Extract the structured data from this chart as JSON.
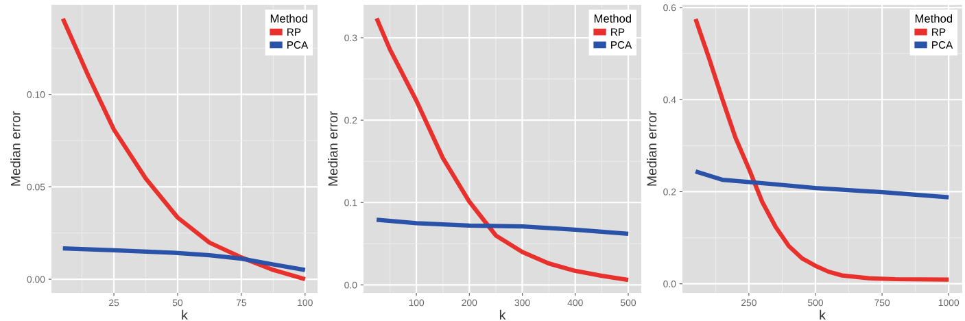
{
  "chart_data": [
    {
      "type": "line",
      "xlabel": "k",
      "ylabel": "Median error",
      "legend_title": "Method",
      "legend": "top right",
      "grid": true,
      "line_style": "solid",
      "xlim": [
        0.5,
        104.9
      ],
      "ylim": [
        -0.0074,
        0.1485
      ],
      "xticks": [
        25,
        50,
        75,
        100
      ],
      "yticks": [
        {
          "value": 0,
          "label": "0.00"
        },
        {
          "value": 0.05,
          "label": "0.05"
        },
        {
          "value": 0.1,
          "label": "0.10"
        }
      ],
      "series": [
        {
          "name": "RP",
          "color": "#e8312d",
          "x": [
            5,
            15,
            25,
            37.5,
            50,
            62.5,
            75,
            87.5,
            100
          ],
          "values": [
            0.141,
            0.11,
            0.081,
            0.0545,
            0.0334,
            0.0198,
            0.0118,
            0.005,
            0.0
          ]
        },
        {
          "name": "PCA",
          "color": "#2a52a8",
          "x": [
            5,
            25,
            50,
            62.5,
            75,
            87.5,
            100
          ],
          "values": [
            0.0167,
            0.0157,
            0.0142,
            0.013,
            0.0111,
            0.008,
            0.005
          ]
        }
      ]
    },
    {
      "type": "line",
      "xlabel": "k",
      "ylabel": "Median error",
      "legend_title": "Method",
      "legend": "top right",
      "grid": true,
      "line_style": "solid",
      "xlim": [
        0.2,
        524.6
      ],
      "ylim": [
        -0.0097,
        0.34
      ],
      "xticks": [
        100,
        200,
        300,
        400,
        500
      ],
      "yticks": [
        {
          "value": 0,
          "label": "0.0"
        },
        {
          "value": 0.1,
          "label": "0.1"
        },
        {
          "value": 0.2,
          "label": "0.2"
        },
        {
          "value": 0.3,
          "label": "0.3"
        }
      ],
      "series": [
        {
          "name": "RP",
          "color": "#e8312d",
          "x": [
            25,
            50,
            100,
            150,
            200,
            250,
            300,
            350,
            400,
            450,
            500
          ],
          "values": [
            0.3236,
            0.286,
            0.2236,
            0.154,
            0.101,
            0.06,
            0.04,
            0.026,
            0.017,
            0.011,
            0.006
          ]
        },
        {
          "name": "PCA",
          "color": "#2a52a8",
          "x": [
            25,
            100,
            200,
            300,
            400,
            500
          ],
          "values": [
            0.079,
            0.075,
            0.072,
            0.071,
            0.067,
            0.062
          ]
        }
      ]
    },
    {
      "type": "line",
      "xlabel": "k",
      "ylabel": "Median error",
      "legend_title": "Method",
      "legend": "top right",
      "grid": true,
      "line_style": "solid",
      "xlim": [
        0.6,
        1051
      ],
      "ylim": [
        -0.0198,
        0.606
      ],
      "xticks": [
        250,
        500,
        750,
        1000
      ],
      "yticks": [
        {
          "value": 0,
          "label": "0.0"
        },
        {
          "value": 0.2,
          "label": "0.2"
        },
        {
          "value": 0.4,
          "label": "0.4"
        },
        {
          "value": 0.6,
          "label": "0.6"
        }
      ],
      "series": [
        {
          "name": "RP",
          "color": "#e8312d",
          "x": [
            50,
            100,
            150,
            200,
            250,
            300,
            350,
            400,
            450,
            500,
            550,
            600,
            700,
            800,
            1000
          ],
          "values": [
            0.575,
            0.491,
            0.402,
            0.317,
            0.25,
            0.178,
            0.124,
            0.082,
            0.055,
            0.039,
            0.026,
            0.018,
            0.012,
            0.01,
            0.009
          ]
        },
        {
          "name": "PCA",
          "color": "#2a52a8",
          "x": [
            50,
            150,
            250,
            350,
            500,
            750,
            1000
          ],
          "values": [
            0.244,
            0.226,
            0.221,
            0.216,
            0.208,
            0.199,
            0.188
          ]
        }
      ]
    }
  ]
}
